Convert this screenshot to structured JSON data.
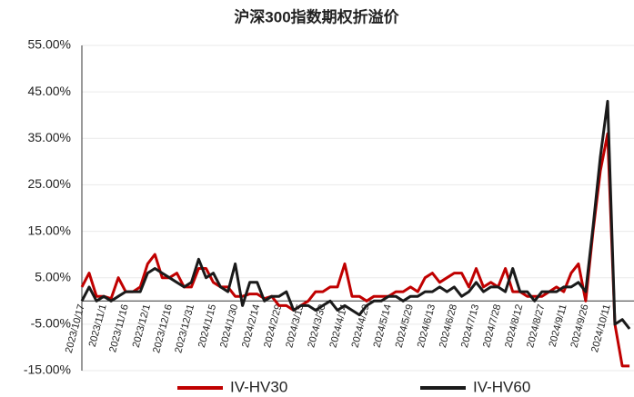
{
  "chart_data": {
    "type": "line",
    "title": "沪深300指数期权折溢价",
    "categories": [
      "2023/10/17",
      null,
      null,
      "2023/11/1",
      null,
      null,
      "2023/11/16",
      null,
      null,
      "2023/12/1",
      null,
      null,
      "2023/12/16",
      null,
      null,
      "2023/12/31",
      null,
      null,
      "2024/1/15",
      null,
      null,
      "2024/1/30",
      null,
      null,
      "2024/2/14",
      null,
      null,
      "2024/2/29",
      null,
      null,
      "2024/3/15",
      null,
      null,
      "2024/3/30",
      null,
      null,
      "2024/4/14",
      null,
      null,
      "2024/4/29",
      null,
      null,
      "2024/5/14",
      null,
      null,
      "2024/5/29",
      null,
      null,
      "2024/6/13",
      null,
      null,
      "2024/6/28",
      null,
      null,
      "2024/7/13",
      null,
      null,
      "2024/7/28",
      null,
      null,
      "2024/8/12",
      null,
      null,
      "2024/8/27",
      null,
      null,
      "2024/9/11",
      null,
      null,
      "2024/9/26",
      null,
      null,
      "2024/10/11",
      null,
      null,
      null
    ],
    "series": [
      {
        "name": "IV-HV30",
        "color": "#c00000",
        "values": [
          3,
          6,
          1,
          1,
          0.5,
          5,
          2,
          2,
          3,
          8,
          10,
          5,
          5,
          6,
          3,
          3,
          7,
          7,
          4,
          3,
          3,
          1,
          1,
          1.5,
          1.5,
          0.5,
          1,
          -1,
          -1,
          -2,
          -1,
          0,
          2,
          2,
          3,
          3,
          8,
          1,
          1,
          0,
          1,
          1,
          1,
          2,
          2,
          3,
          2,
          5,
          6,
          4,
          5,
          6,
          6,
          3,
          7,
          3,
          4,
          3,
          7,
          2,
          2,
          1,
          1,
          1,
          2,
          3,
          2,
          6,
          8,
          0,
          15,
          28,
          36,
          -5,
          -14,
          -14
        ]
      },
      {
        "name": "IV-HV60",
        "color": "#1a1a1a",
        "values": [
          0,
          3,
          0,
          1,
          0,
          1,
          2,
          2,
          2,
          6,
          7,
          6,
          5,
          4,
          3,
          4,
          9,
          5,
          6,
          3,
          2,
          8,
          -1,
          4,
          4,
          0,
          1,
          1,
          2,
          -2,
          -1,
          -1,
          -2,
          -1,
          0,
          -2,
          -1,
          -2,
          -3,
          -1,
          0,
          0,
          1,
          1,
          0,
          1,
          1,
          2,
          2,
          3,
          2,
          3,
          1,
          2,
          4,
          2,
          3,
          3,
          2,
          7,
          2,
          2,
          0,
          2,
          2,
          2,
          3,
          3,
          4,
          2,
          16,
          31,
          43,
          -5,
          -4,
          -6
        ]
      }
    ],
    "ylim": [
      -15,
      55
    ],
    "yticks": [
      {
        "value": 55,
        "label": "55.00%"
      },
      {
        "value": 45,
        "label": "45.00%"
      },
      {
        "value": 35,
        "label": "35.00%"
      },
      {
        "value": 25,
        "label": "25.00%"
      },
      {
        "value": 15,
        "label": "15.00%"
      },
      {
        "value": 5,
        "label": "5.00%"
      },
      {
        "value": -5,
        "label": "-5.00%"
      },
      {
        "value": -15,
        "label": "-15.00%"
      }
    ],
    "grid": true,
    "legend": "bottom"
  }
}
